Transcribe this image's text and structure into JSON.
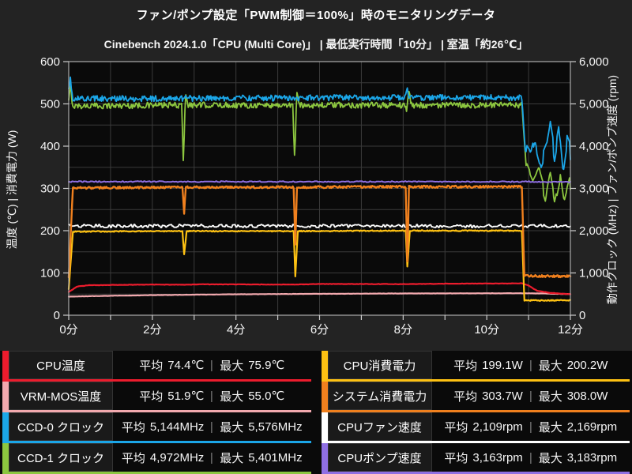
{
  "header": {
    "title": "ファン/ポンプ設定「PWM制御＝100%」時のモニタリングデータ",
    "subtitle": "Cinebench 2024.1.0「CPU (Multi Core)」 | 最低実行時間「10分」 | 室温「約26℃」"
  },
  "colors": {
    "page_bg": "#232323",
    "plot_bg": "#0a0a0a",
    "grid": "#3a3a3a",
    "border": "#aaaaaa",
    "tick": "#cccccc",
    "label": "#f5f5f5"
  },
  "chart_data": {
    "type": "line",
    "title": "ファン/ポンプ設定「PWM制御＝100%」時のモニタリングデータ",
    "subtitle": "Cinebench 2024.1.0「CPU (Multi Core)」 | 最低実行時間「10分」 | 室温「約26℃」",
    "grid": "on",
    "x": {
      "min": 0,
      "max": 12,
      "minor_tick": 1,
      "major_tick": 2,
      "tick_labels": [
        "0分",
        "2分",
        "4分",
        "6分",
        "8分",
        "10分",
        "12分"
      ]
    },
    "axes": {
      "left": {
        "title": "温度 (℃) | 消費電力 (W)",
        "min": 0,
        "max": 600,
        "tick": 100,
        "grid_step": 50,
        "tick_labels": [
          "0",
          "100",
          "200",
          "300",
          "400",
          "500",
          "600"
        ]
      },
      "right": {
        "title": "動作クロック (MHz) | ファン/ポンプ速度 (rpm)",
        "min": 0,
        "max": 6000,
        "tick": 1000,
        "tick_labels": [
          "0",
          "1,000",
          "2,000",
          "3,000",
          "4,000",
          "5,000",
          "6,000"
        ]
      }
    },
    "series": [
      {
        "id": "ccd1-clock",
        "name": "CCD-1 クロック",
        "color": "#8cc63f",
        "axis": "right",
        "width": 1.8,
        "points": [
          [
            0,
            5050
          ],
          [
            0.04,
            5390
          ],
          [
            0.1,
            4950
          ],
          [
            2.7,
            4970
          ],
          [
            2.745,
            3560
          ],
          [
            2.79,
            5300
          ],
          [
            2.86,
            4970
          ],
          [
            5.36,
            4970
          ],
          [
            5.405,
            3620
          ],
          [
            5.45,
            5250
          ],
          [
            5.52,
            4970
          ],
          [
            8.05,
            4970
          ],
          [
            8.09,
            4820
          ],
          [
            8.13,
            5340
          ],
          [
            8.2,
            4970
          ],
          [
            10.84,
            4970
          ],
          [
            10.95,
            3400
          ],
          [
            11.1,
            3050
          ],
          [
            11.25,
            3350
          ],
          [
            11.4,
            2850
          ],
          [
            11.5,
            3400
          ],
          [
            11.62,
            2700
          ],
          [
            11.75,
            3300
          ],
          [
            11.85,
            2580
          ],
          [
            12,
            3150
          ]
        ],
        "noise": [
          [
            0,
            10.84,
            70,
            1
          ],
          [
            10.95,
            12,
            210,
            4
          ]
        ]
      },
      {
        "id": "ccd0-clock",
        "name": "CCD-0 クロック",
        "color": "#1ba6e8",
        "axis": "right",
        "width": 1.8,
        "points": [
          [
            0,
            5300
          ],
          [
            0.04,
            5565
          ],
          [
            0.1,
            5120
          ],
          [
            8.05,
            5150
          ],
          [
            8.09,
            5420
          ],
          [
            8.13,
            5150
          ],
          [
            10.84,
            5150
          ],
          [
            10.92,
            3900
          ],
          [
            11.05,
            3700
          ],
          [
            11.15,
            4150
          ],
          [
            11.3,
            3600
          ],
          [
            11.42,
            3900
          ],
          [
            11.52,
            4480
          ],
          [
            11.62,
            3850
          ],
          [
            11.72,
            4420
          ],
          [
            11.82,
            3350
          ],
          [
            11.92,
            4050
          ],
          [
            12,
            3850
          ]
        ],
        "noise": [
          [
            0,
            10.84,
            70,
            1
          ],
          [
            10.92,
            12,
            230,
            4
          ]
        ]
      },
      {
        "id": "vrm-mos-temp",
        "name": "VRM-MOS温度",
        "color": "#f2a9ae",
        "axis": "left",
        "width": 2.2,
        "points": [
          [
            0,
            44
          ],
          [
            1,
            46
          ],
          [
            2,
            47.5
          ],
          [
            4,
            49.5
          ],
          [
            6,
            50.5
          ],
          [
            8,
            51.5
          ],
          [
            10.84,
            52
          ],
          [
            11.3,
            51.5
          ],
          [
            12,
            50
          ]
        ],
        "noise": [
          [
            0,
            12,
            0.25,
            2
          ]
        ]
      },
      {
        "id": "cpu-temp",
        "name": "CPU温度",
        "color": "#ec1c2d",
        "axis": "left",
        "width": 2.2,
        "points": [
          [
            0,
            55
          ],
          [
            0.2,
            68
          ],
          [
            0.5,
            71
          ],
          [
            2,
            72.5
          ],
          [
            2.76,
            72
          ],
          [
            3.2,
            73.2
          ],
          [
            5.41,
            72.5
          ],
          [
            6,
            74
          ],
          [
            8.1,
            73.5
          ],
          [
            9,
            74.6
          ],
          [
            10.84,
            75.3
          ],
          [
            11,
            70
          ],
          [
            11.2,
            58
          ],
          [
            11.5,
            53
          ],
          [
            11.8,
            51
          ],
          [
            12,
            50
          ]
        ],
        "noise": [
          [
            0,
            12,
            0.4,
            2
          ]
        ]
      },
      {
        "id": "cpu-power",
        "name": "CPU消費電力",
        "color": "#fdc113",
        "axis": "left",
        "width": 2.2,
        "points": [
          [
            0,
            62
          ],
          [
            0.1,
            198
          ],
          [
            2.72,
            199
          ],
          [
            2.76,
            143
          ],
          [
            2.82,
            199
          ],
          [
            5.38,
            199
          ],
          [
            5.42,
            92
          ],
          [
            5.48,
            199
          ],
          [
            8.06,
            200
          ],
          [
            8.1,
            115
          ],
          [
            8.16,
            200
          ],
          [
            10.84,
            200
          ],
          [
            10.9,
            35
          ],
          [
            12,
            35
          ]
        ],
        "noise": [
          [
            0,
            12,
            1.2,
            1
          ]
        ]
      },
      {
        "id": "cpu-fan",
        "name": "CPUファン速度",
        "color": "#ffffff",
        "axis": "right",
        "width": 1.8,
        "points": [
          [
            0,
            2110
          ],
          [
            12,
            2110
          ]
        ],
        "noise": [
          [
            0,
            12,
            36,
            2
          ]
        ]
      },
      {
        "id": "system-power",
        "name": "システム消費電力",
        "color": "#f0801e",
        "axis": "left",
        "width": 2.4,
        "points": [
          [
            0,
            88
          ],
          [
            0.1,
            301
          ],
          [
            2.72,
            303
          ],
          [
            2.76,
            240
          ],
          [
            2.8,
            303
          ],
          [
            5.38,
            303
          ],
          [
            5.42,
            165
          ],
          [
            5.46,
            303
          ],
          [
            8.06,
            304
          ],
          [
            8.1,
            125
          ],
          [
            8.14,
            304
          ],
          [
            10.84,
            304
          ],
          [
            10.9,
            93
          ],
          [
            12,
            92
          ]
        ],
        "noise": [
          [
            0,
            12,
            2.5,
            1
          ]
        ]
      },
      {
        "id": "cpu-pump",
        "name": "CPUポンプ速度",
        "color": "#8f6fe3",
        "axis": "right",
        "width": 2,
        "points": [
          [
            0,
            3160
          ],
          [
            10.9,
            3160
          ],
          [
            12,
            3150
          ]
        ],
        "noise": [
          [
            0,
            12,
            12,
            2
          ]
        ]
      }
    ]
  },
  "legend": {
    "avg_prefix": "平均",
    "max_prefix": "最大",
    "separator": "|",
    "columns": [
      [
        {
          "id": "cpu-temp",
          "label": "CPU温度",
          "color": "#ec1c2d",
          "avg": "74.4℃",
          "max": "75.9℃"
        },
        {
          "id": "vrm-mos-temp",
          "label": "VRM-MOS温度",
          "color": "#f2a9ae",
          "avg": "51.9℃",
          "max": "55.0℃"
        },
        {
          "id": "ccd0-clock",
          "label": "CCD-0 クロック",
          "color": "#1ba6e8",
          "avg": "5,144MHz",
          "max": "5,576MHz"
        },
        {
          "id": "ccd1-clock",
          "label": "CCD-1 クロック",
          "color": "#8cc63f",
          "avg": "4,972MHz",
          "max": "5,401MHz"
        }
      ],
      [
        {
          "id": "cpu-power",
          "label": "CPU消費電力",
          "color": "#fdc113",
          "avg": "199.1W",
          "max": "200.2W"
        },
        {
          "id": "system-power",
          "label": "システム消費電力",
          "color": "#f0801e",
          "avg": "303.7W",
          "max": "308.0W"
        },
        {
          "id": "cpu-fan",
          "label": "CPUファン速度",
          "color": "#ffffff",
          "avg": "2,109rpm",
          "max": "2,169rpm"
        },
        {
          "id": "cpu-pump",
          "label": "CPUポンプ速度",
          "color": "#8f6fe3",
          "avg": "3,163rpm",
          "max": "3,183rpm"
        }
      ]
    ]
  }
}
